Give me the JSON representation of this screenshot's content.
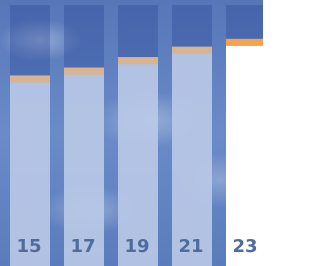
{
  "chart_data": {
    "type": "bar",
    "categories": [
      "15",
      "17",
      "19",
      "21",
      "23"
    ],
    "values": [
      73,
      76,
      80,
      84,
      87
    ],
    "bar_colors": [
      "#c3d1ec",
      "#c3d1ec",
      "#c3d1ec",
      "#c3d1ec",
      "#ffffff"
    ],
    "cap_colors": [
      "#d9b48f",
      "#d9b48f",
      "#d9b48f",
      "#d9b48f",
      "#f5a24a"
    ],
    "ylim": [
      0,
      100
    ]
  }
}
